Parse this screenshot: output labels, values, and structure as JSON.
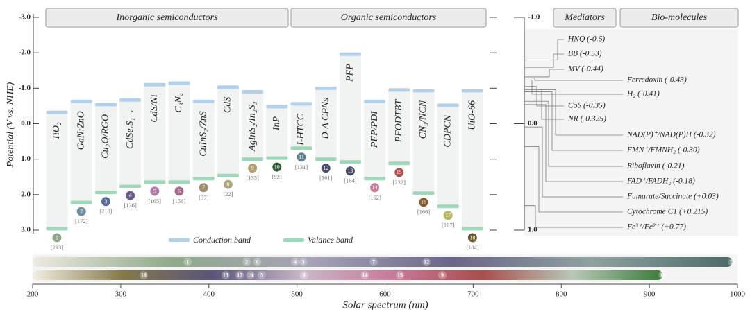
{
  "chart_data": [
    {
      "type": "band-diagram",
      "ylabel": "Potential (V vs. NHE)",
      "group_labels": [
        "Inorganic semiconductors",
        "Organic semiconductors"
      ],
      "ylim": [
        -3,
        3
      ],
      "yticks": [
        {
          "value": -3,
          "label": "-3.0"
        },
        {
          "value": -2,
          "label": "-2.0"
        },
        {
          "value": -1,
          "label": "-1.0"
        },
        {
          "value": 0,
          "label": "0.0"
        },
        {
          "value": 1,
          "label": "1.0"
        },
        {
          "value": 2,
          "label": "2.0"
        },
        {
          "value": 3,
          "label": "3.0"
        }
      ],
      "categories": [
        "TiO₂",
        "GaN:ZnO",
        "Cu₂O/RGO",
        "CdSeₓS₁₋ₓ",
        "CdS/Ni",
        "C₃N₄",
        "CuInS₂/ZnS",
        "CdS",
        "AgInS₂/In₂S₃",
        "InP",
        "I-HTCC",
        "D-A CPNs",
        "PFP",
        "PFP/PDI",
        "PFODTBT",
        "CN₃/NCN",
        "CDPCN",
        "UiO-66"
      ],
      "series": [
        {
          "name": "Conduction band",
          "color": "#b3d1ea",
          "values": [
            -0.32,
            -0.63,
            -0.54,
            -0.67,
            -1.1,
            -1.14,
            -0.63,
            -1.03,
            -0.9,
            -0.48,
            -0.56,
            -1.0,
            -1.96,
            -0.63,
            -0.95,
            -0.93,
            -0.52,
            -0.93
          ]
        },
        {
          "name": "Valance band",
          "color": "#9dd8b8",
          "values": [
            2.96,
            2.22,
            1.94,
            1.77,
            1.65,
            1.65,
            1.55,
            1.46,
            1.0,
            0.97,
            0.69,
            1.0,
            1.08,
            1.55,
            1.12,
            1.96,
            2.33,
            2.96
          ]
        }
      ],
      "numbers": [
        "1",
        "2",
        "3",
        "4",
        "5",
        "6",
        "7",
        "8",
        "9",
        "10",
        "11",
        "12",
        "13",
        "14",
        "15",
        "16",
        "17",
        "18"
      ],
      "number_colors": [
        "#8fa98a",
        "#6f8fa0",
        "#5a6a9a",
        "#6b5f8f",
        "#b07aa8",
        "#a56a8a",
        "#a09070",
        "#a8a67a",
        "#b0a070",
        "#2f5a3a",
        "#5f7f8a",
        "#4a4a6a",
        "#4a4a66",
        "#c77a9a",
        "#a94e4e",
        "#8a5a2a",
        "#b8b860",
        "#6a5a2a"
      ],
      "references": [
        "[213]",
        "[172]",
        "[218]",
        "[136]",
        "[165]",
        "[156]",
        "[37]",
        "[22]",
        "[135]",
        "[92]",
        "[131]",
        "[161]",
        "[164]",
        "[152]",
        "[232]",
        "[166]",
        "[167]",
        "[184]"
      ]
    },
    {
      "type": "redox-levels",
      "group_labels": [
        "Mediators",
        "Bio-molecules"
      ],
      "ylim": [
        -1,
        1
      ],
      "yticks": [
        {
          "value": -1,
          "label": "-1.0"
        },
        {
          "value": 0,
          "label": "0.0"
        },
        {
          "value": 1,
          "label": "1.0"
        }
      ],
      "categories": [
        "HNQ (-0.6)",
        "BB (-0.53)",
        "MV (-0.44)",
        "Ferredoxin (-0.43)",
        "H₂ (-0.41)",
        "CoS (-0.35)",
        "NR (-0.325)",
        "NAD(P)⁺/NAD(P)H (-0.32)",
        "FMN⁺/FMNH₂ (-0.30)",
        "Riboflavin (-0.21)",
        "FAD⁺/FADH₂ (-0.18)",
        "Fumarate/Succinate (+0.03)",
        "Cytochrome C1 (+0.215)",
        "Fe³⁺/Fe²⁺ (+0.77)"
      ],
      "values": [
        -0.6,
        -0.53,
        -0.44,
        -0.43,
        -0.41,
        -0.35,
        -0.325,
        -0.32,
        -0.3,
        -0.21,
        -0.18,
        0.03,
        0.215,
        0.77
      ]
    },
    {
      "type": "spectrum",
      "xlabel": "Solar spectrum (nm)",
      "xlim": [
        200,
        1000
      ],
      "xticks": [
        200,
        300,
        400,
        500,
        600,
        700,
        800,
        900,
        1000
      ],
      "rows": [
        {
          "labels": [
            "1",
            "2",
            "6",
            "4",
            "3",
            "7",
            "12",
            "11"
          ],
          "values": [
            376,
            443,
            455,
            498,
            507,
            587,
            647,
            994
          ],
          "gradient": [
            "#eeeae0",
            "#8fa98a",
            "#a7a2b8",
            "#6a6688",
            "#8fa2a0",
            "#4c6b6a"
          ]
        },
        {
          "labels": [
            "18",
            "13",
            "17",
            "16",
            "5",
            "8",
            "14",
            "15",
            "9",
            "10"
          ],
          "values": [
            326,
            419,
            435,
            447,
            460,
            508,
            577,
            617,
            665,
            915
          ],
          "gradient": [
            "#f2eee2",
            "#847a4c",
            "#5a5478",
            "#c9b8c8",
            "#c77a9a",
            "#a94e4e",
            "#b8c8b8",
            "#3c7a3a"
          ]
        }
      ]
    }
  ]
}
